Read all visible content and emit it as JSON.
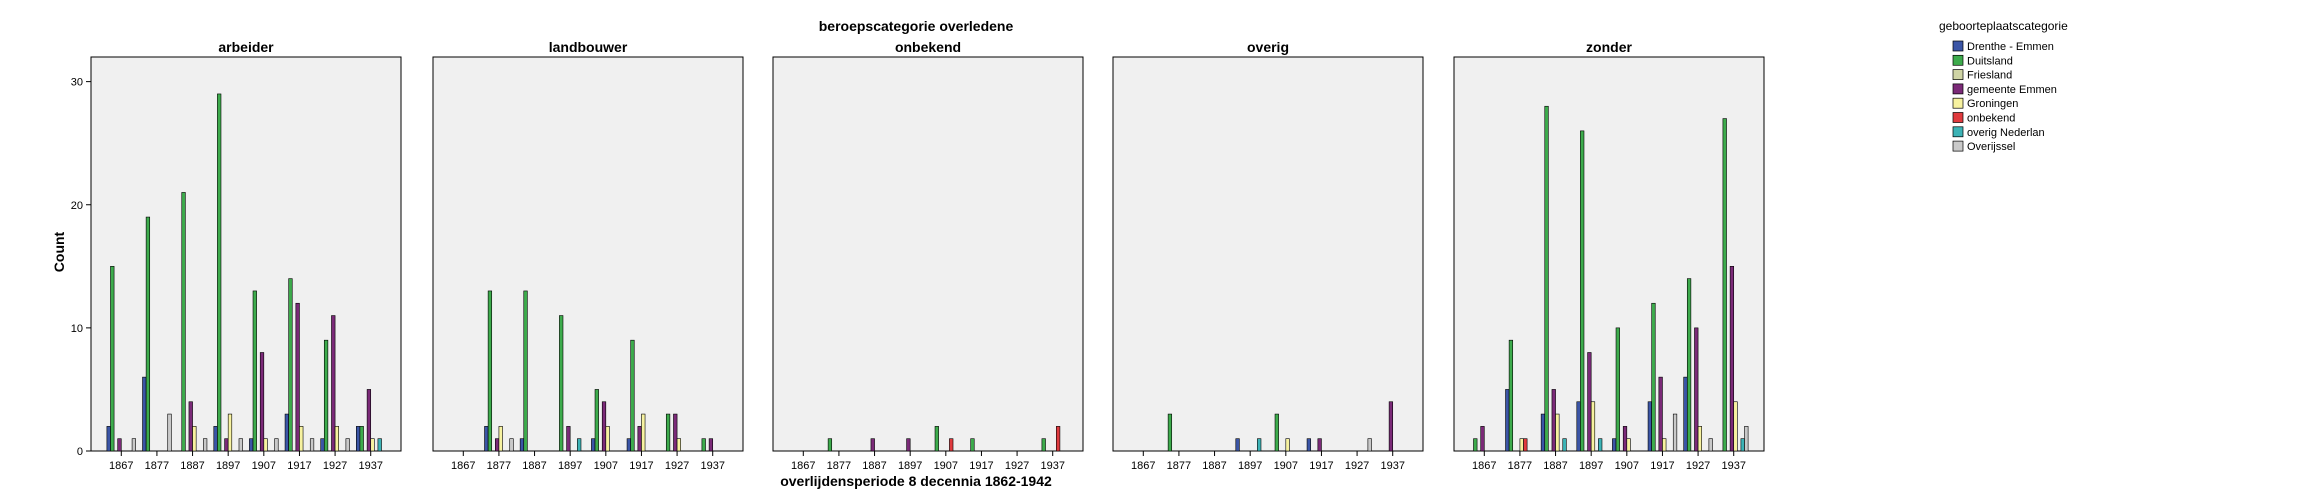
{
  "chart_data": {
    "type": "bar",
    "title": "beroepscategorie overledene",
    "xlabel": "overlijdensperiode 8 decennia 1862-1942",
    "ylabel": "Count",
    "ylim": [
      0,
      32
    ],
    "yticks": [
      0,
      10,
      20,
      30
    ],
    "grid": false,
    "legend_title": "geboorteplaatscategorie",
    "legend_position": "top-right",
    "categories": [
      "1867",
      "1877",
      "1887",
      "1897",
      "1907",
      "1917",
      "1927",
      "1937"
    ],
    "series": [
      {
        "name": "Drenthe - Emmen",
        "color": "#3b55a6"
      },
      {
        "name": "Duitsland",
        "color": "#3dab4c"
      },
      {
        "name": "Friesland",
        "color": "#cfd4a5"
      },
      {
        "name": "gemeente Emmen",
        "color": "#7b2a78"
      },
      {
        "name": "Groningen",
        "color": "#f7f2a0"
      },
      {
        "name": "onbekend",
        "color": "#e03a3e"
      },
      {
        "name": "overig Nederlan",
        "color": "#3cb3b6"
      },
      {
        "name": "Overijssel",
        "color": "#c9c9c9"
      }
    ],
    "panels": [
      {
        "title": "arbeider",
        "values": [
          [
            2,
            15,
            0,
            1,
            0,
            0,
            0,
            1
          ],
          [
            6,
            19,
            0,
            0,
            0,
            0,
            0,
            3
          ],
          [
            0,
            21,
            0,
            4,
            2,
            0,
            0,
            1
          ],
          [
            2,
            29,
            0,
            1,
            3,
            0,
            0,
            1
          ],
          [
            1,
            13,
            0,
            8,
            1,
            0,
            0,
            1
          ],
          [
            3,
            14,
            0,
            12,
            2,
            0,
            0,
            1
          ],
          [
            1,
            9,
            0,
            11,
            2,
            0,
            0,
            1
          ],
          [
            2,
            2,
            0,
            5,
            1,
            0,
            1,
            0
          ]
        ]
      },
      {
        "title": "landbouwer",
        "values": [
          [
            0,
            0,
            0,
            0,
            0,
            0,
            0,
            0
          ],
          [
            2,
            13,
            0,
            1,
            2,
            0,
            0,
            1
          ],
          [
            1,
            13,
            0,
            0,
            0,
            0,
            0,
            0
          ],
          [
            0,
            11,
            0,
            2,
            0,
            0,
            1,
            0
          ],
          [
            1,
            5,
            0,
            4,
            2,
            0,
            0,
            0
          ],
          [
            1,
            9,
            0,
            2,
            3,
            0,
            0,
            0
          ],
          [
            0,
            3,
            0,
            3,
            1,
            0,
            0,
            0
          ],
          [
            0,
            1,
            0,
            1,
            0,
            0,
            0,
            0
          ]
        ]
      },
      {
        "title": "onbekend",
        "values": [
          [
            0,
            0,
            0,
            0,
            0,
            0,
            0,
            0
          ],
          [
            0,
            1,
            0,
            0,
            0,
            0,
            0,
            0
          ],
          [
            0,
            0,
            0,
            1,
            0,
            0,
            0,
            0
          ],
          [
            0,
            0,
            0,
            1,
            0,
            0,
            0,
            0
          ],
          [
            0,
            2,
            0,
            0,
            0,
            1,
            0,
            0
          ],
          [
            0,
            1,
            0,
            0,
            0,
            0,
            0,
            0
          ],
          [
            0,
            0,
            0,
            0,
            0,
            0,
            0,
            0
          ],
          [
            0,
            1,
            0,
            0,
            0,
            2,
            0,
            0
          ]
        ]
      },
      {
        "title": "overig",
        "values": [
          [
            0,
            0,
            0,
            0,
            0,
            0,
            0,
            0
          ],
          [
            0,
            3,
            0,
            0,
            0,
            0,
            0,
            0
          ],
          [
            0,
            0,
            0,
            0,
            0,
            0,
            0,
            0
          ],
          [
            1,
            0,
            0,
            0,
            0,
            0,
            1,
            0
          ],
          [
            0,
            3,
            0,
            0,
            1,
            0,
            0,
            0
          ],
          [
            1,
            0,
            0,
            1,
            0,
            0,
            0,
            0
          ],
          [
            0,
            0,
            0,
            0,
            0,
            0,
            0,
            1
          ],
          [
            0,
            0,
            0,
            4,
            0,
            0,
            0,
            0
          ]
        ]
      },
      {
        "title": "zonder",
        "values": [
          [
            0,
            1,
            0,
            2,
            0,
            0,
            0,
            0
          ],
          [
            5,
            9,
            0,
            0,
            1,
            1,
            0,
            0
          ],
          [
            3,
            28,
            0,
            5,
            3,
            0,
            1,
            0
          ],
          [
            4,
            26,
            0,
            8,
            4,
            0,
            1,
            0
          ],
          [
            1,
            10,
            0,
            2,
            1,
            0,
            0,
            0
          ],
          [
            4,
            12,
            0,
            6,
            1,
            0,
            0,
            3
          ],
          [
            6,
            14,
            0,
            10,
            2,
            0,
            0,
            1
          ],
          [
            0,
            27,
            0,
            15,
            4,
            0,
            1,
            2
          ]
        ]
      }
    ]
  }
}
